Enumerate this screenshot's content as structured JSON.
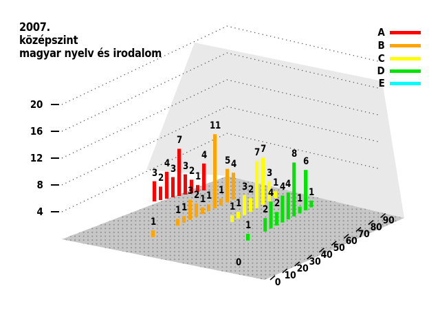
{
  "title": {
    "line1": "2007.",
    "line2": "középszint",
    "line3": "magyar nyelv és irodalom"
  },
  "legend": [
    {
      "label": "A",
      "color": "#ff0000"
    },
    {
      "label": "B",
      "color": "#ffa500"
    },
    {
      "label": "C",
      "color": "#ffff00"
    },
    {
      "label": "D",
      "color": "#00e400"
    },
    {
      "label": "E",
      "color": "#00ffff"
    }
  ],
  "z_axis": {
    "ticks": [
      "20",
      "16",
      "12",
      "8",
      "4"
    ]
  },
  "x_axis": {
    "ticks": [
      "0",
      "10",
      "20",
      "30",
      "40",
      "50",
      "60",
      "70",
      "80",
      "90"
    ]
  },
  "chart_data": {
    "type": "bar",
    "projection": "3d",
    "title": "2007. középszint magyar nyelv és irodalom",
    "xlabel": "",
    "ylabel": "",
    "x_tick_values": [
      0,
      10,
      20,
      30,
      40,
      50,
      60,
      70,
      80,
      90
    ],
    "z_tick_values": [
      4,
      8,
      12,
      16,
      20
    ],
    "legend_position": "top-right",
    "grid": "dotted",
    "series": [
      {
        "name": "A",
        "color": "#ff0000",
        "values": [
          3,
          2,
          4,
          3,
          7,
          3,
          2,
          1,
          4
        ]
      },
      {
        "name": "B",
        "color": "#ffa500",
        "values": [
          1,
          null,
          null,
          null,
          1,
          1,
          3,
          2,
          1,
          1,
          11,
          1,
          5,
          4
        ]
      },
      {
        "name": "C",
        "color": "#ffff00",
        "values": [
          1,
          1,
          3,
          2,
          7,
          7,
          3,
          1
        ]
      },
      {
        "name": "D",
        "color": "#00e400",
        "values": [
          1,
          null,
          null,
          2,
          4,
          2,
          4,
          4,
          8,
          1,
          6,
          1
        ]
      },
      {
        "name": "E",
        "color": "#00ffff",
        "values": [
          0
        ]
      }
    ]
  },
  "colors": {
    "wall": "#e9e9e9",
    "floor": "#c7c7c7",
    "floor_dots": "#8f8f8f",
    "grid_dots": "#555555",
    "text": "#000000"
  }
}
